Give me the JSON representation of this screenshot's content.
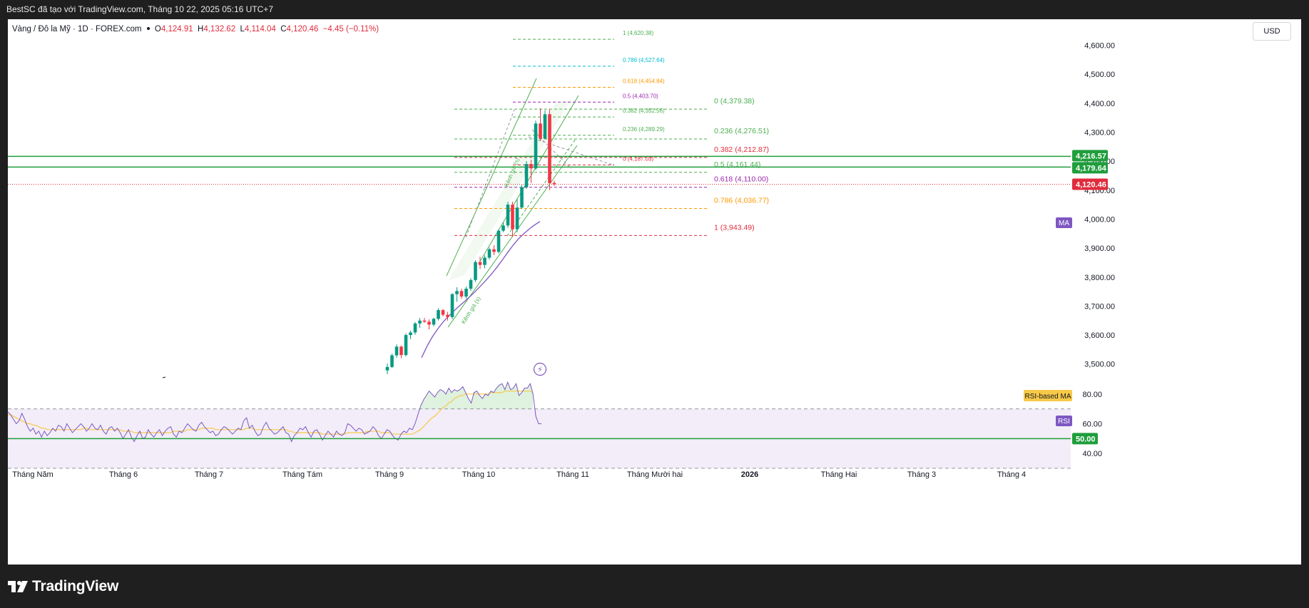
{
  "window": {
    "title": "BestSC đã tạo với TradingView.com, Tháng 10 22, 2025 05:16 UTC+7"
  },
  "legend": {
    "symbol": "Vàng / Đô la Mỹ · 1D · FOREX.com",
    "o_label": "O",
    "o_value": "4,124.91",
    "h_label": "H",
    "h_value": "4,132.62",
    "l_label": "L",
    "l_value": "4,114.04",
    "c_label": "C",
    "c_value": "4,120.46",
    "change": "−4.45 (−0.11%)"
  },
  "currency_button": "USD",
  "branding": {
    "name": "TradingView",
    "logo_icon": "tradingview-logo-icon"
  },
  "colors": {
    "up": "#089981",
    "down": "#f23645",
    "rsi": "#7e57c2",
    "rsi_ma": "#f7c948",
    "ma": "#7e57c2",
    "price_line": "#e02c3c",
    "hline": "#1f9e3c",
    "fib_green": "#4caf50",
    "fib_red": "#e02c3c",
    "fib_purple": "#9c27b0",
    "fib_orange": "#ff9800",
    "fib_cyan": "#00bcd4"
  },
  "chart_data": {
    "type": "candlestick",
    "instrument": "Vàng / Đô la Mỹ",
    "interval": "1D",
    "ylim": [
      3460,
      4670
    ],
    "y_ticks": [
      "4,600.00",
      "4,500.00",
      "4,400.00",
      "4,300.00",
      "4,200.00",
      "4,100.00",
      "4,000.00",
      "3,900.00",
      "3,800.00",
      "3,700.00",
      "3,600.00",
      "3,500.00"
    ],
    "x_ticks": [
      "Tháng Năm",
      "Tháng 6",
      "Tháng 7",
      "Tháng Tám",
      "Tháng 9",
      "Tháng 10",
      "Tháng 11",
      "Tháng Mười hai",
      "2026",
      "Tháng Hai",
      "Tháng 3",
      "Tháng 4"
    ],
    "candles_ohlc": [
      [
        3478,
        3502,
        3465,
        3490
      ],
      [
        3490,
        3536,
        3486,
        3530
      ],
      [
        3530,
        3568,
        3522,
        3560
      ],
      [
        3560,
        3564,
        3520,
        3531
      ],
      [
        3531,
        3606,
        3526,
        3600
      ],
      [
        3600,
        3615,
        3586,
        3609
      ],
      [
        3609,
        3645,
        3601,
        3640
      ],
      [
        3640,
        3659,
        3625,
        3650
      ],
      [
        3650,
        3659,
        3642,
        3646
      ],
      [
        3646,
        3654,
        3620,
        3636
      ],
      [
        3636,
        3660,
        3630,
        3656
      ],
      [
        3656,
        3692,
        3650,
        3686
      ],
      [
        3686,
        3690,
        3664,
        3670
      ],
      [
        3670,
        3680,
        3650,
        3662
      ],
      [
        3662,
        3745,
        3655,
        3741
      ],
      [
        3741,
        3765,
        3715,
        3752
      ],
      [
        3752,
        3760,
        3725,
        3733
      ],
      [
        3733,
        3767,
        3726,
        3760
      ],
      [
        3760,
        3796,
        3752,
        3790
      ],
      [
        3790,
        3858,
        3783,
        3852
      ],
      [
        3852,
        3870,
        3828,
        3842
      ],
      [
        3842,
        3875,
        3830,
        3867
      ],
      [
        3867,
        3902,
        3860,
        3896
      ],
      [
        3896,
        3910,
        3876,
        3887
      ],
      [
        3887,
        3965,
        3882,
        3960
      ],
      [
        3960,
        3988,
        3955,
        3978
      ],
      [
        3978,
        4060,
        3970,
        4050
      ],
      [
        4050,
        4060,
        3939,
        3965
      ],
      [
        3965,
        4068,
        3955,
        4040
      ],
      [
        4040,
        4118,
        4035,
        4110
      ],
      [
        4110,
        4200,
        4105,
        4190
      ],
      [
        4190,
        4205,
        4125,
        4175
      ],
      [
        4175,
        4340,
        4170,
        4330
      ],
      [
        4330,
        4382,
        4270,
        4278
      ],
      [
        4278,
        4376,
        4275,
        4362
      ],
      [
        4362,
        4381,
        4100,
        4124
      ],
      [
        4124.91,
        4132.62,
        4114.04,
        4120.46
      ]
    ],
    "moving_average": [
      3522,
      3561,
      3594,
      3621,
      3645,
      3665,
      3683,
      3700,
      3716,
      3733,
      3751,
      3770,
      3790,
      3811,
      3834,
      3859,
      3885,
      3910,
      3932,
      3950,
      3966,
      3980,
      3992
    ],
    "horizontal_levels": [
      {
        "price": 4216.57,
        "label": "4,216.57"
      },
      {
        "price": 4179.64,
        "label": "4,179.64"
      }
    ],
    "last_price": {
      "price": 4120.46,
      "label": "4,120.46"
    },
    "ma_label": "MA",
    "fib_extension": [
      {
        "text": "1 (4,620.38)",
        "price": 4620.38,
        "color": "#4caf50"
      },
      {
        "text": "0.786 (4,527.64)",
        "price": 4527.64,
        "color": "#00bcd4"
      },
      {
        "text": "0.618 (4,454.84)",
        "price": 4454.84,
        "color": "#ff9800"
      },
      {
        "text": "0.5 (4,403.70)",
        "price": 4403.7,
        "color": "#9c27b0"
      },
      {
        "text": "0.382 (4,352.56)",
        "price": 4352.56,
        "color": "#4caf50"
      },
      {
        "text": "0.236 (4,289.29)",
        "price": 4289.29,
        "color": "#4caf50"
      },
      {
        "text": "0 (4,187.03)",
        "price": 4187.03,
        "color": "#e02c3c"
      }
    ],
    "fib_retracement": [
      {
        "text": "0 (4,379.38)",
        "price": 4379.38,
        "color": "#4caf50"
      },
      {
        "text": "0.236 (4,276.51)",
        "price": 4276.51,
        "color": "#4caf50"
      },
      {
        "text": "0.382 (4,212.87)",
        "price": 4212.87,
        "color": "#e02c3c"
      },
      {
        "text": "0.5 (4,161.44)",
        "price": 4161.44,
        "color": "#4caf50"
      },
      {
        "text": "0.618 (4,110.00)",
        "price": 4110.0,
        "color": "#9c27b0"
      },
      {
        "text": "0.786 (4,036.77)",
        "price": 4036.77,
        "color": "#ff9800"
      },
      {
        "text": "1 (3,943.49)",
        "price": 3943.49,
        "color": "#e02c3c"
      }
    ],
    "channel_labels": [
      "Kênh giá (s)",
      "Kênh giá (s)"
    ],
    "rsi": {
      "label": "RSI",
      "ma_label": "RSI-based MA",
      "ylim": [
        30,
        90
      ],
      "y_ticks": [
        "80.00",
        "60.00",
        "40.00"
      ],
      "upper_band": 70,
      "lower_band": 30,
      "level_line": 50,
      "level_label": "50.00",
      "values": [
        68,
        66,
        63,
        60,
        62,
        67,
        63,
        58,
        55,
        57,
        53,
        55,
        51,
        55,
        52,
        54,
        57,
        55,
        59,
        58,
        55,
        60,
        57,
        54,
        56,
        58,
        60,
        58,
        55,
        57,
        60,
        57,
        56,
        59,
        55,
        53,
        57,
        58,
        55,
        57,
        54,
        50,
        53,
        56,
        51,
        48,
        52,
        55,
        50,
        51,
        56,
        53,
        51,
        54,
        56,
        52,
        55,
        57,
        58,
        53,
        51,
        55,
        54,
        57,
        60,
        58,
        56,
        55,
        59,
        61,
        58,
        56,
        54,
        55,
        52,
        53,
        56,
        58,
        57,
        55,
        53,
        55,
        57,
        56,
        62,
        64,
        57,
        59,
        55,
        52,
        53,
        58,
        61,
        57,
        55,
        53,
        54,
        56,
        58,
        54,
        53,
        48,
        52,
        54,
        57,
        56,
        58,
        54,
        51,
        55,
        56,
        53,
        49,
        52,
        55,
        53,
        51,
        55,
        53,
        52,
        54,
        60,
        59,
        57,
        55,
        57,
        56,
        53,
        54,
        55,
        58,
        56,
        52,
        50,
        53,
        56,
        55,
        52,
        50,
        49,
        53,
        55,
        54,
        57,
        56,
        60,
        66,
        72,
        76,
        79,
        82,
        80,
        78,
        81,
        83,
        82,
        80,
        84,
        81,
        83,
        82,
        83,
        85,
        81,
        77,
        74,
        81,
        82,
        79,
        77,
        80,
        79,
        82,
        81,
        84,
        86,
        87,
        83,
        88,
        83,
        84,
        87,
        79,
        81,
        84,
        84,
        87,
        80,
        65,
        60,
        60
      ],
      "ma_values": [
        66,
        66,
        65,
        64,
        63,
        62,
        61,
        60,
        60,
        59,
        59,
        58,
        57,
        57,
        56,
        56,
        56,
        56,
        56,
        56,
        56,
        56,
        56,
        56,
        56,
        56,
        56,
        57,
        57,
        56,
        56,
        56,
        56,
        56,
        56,
        56,
        56,
        56,
        56,
        56,
        56,
        55,
        55,
        55,
        55,
        54,
        54,
        54,
        54,
        54,
        54,
        54,
        54,
        54,
        54,
        54,
        54,
        54,
        54,
        55,
        55,
        55,
        55,
        55,
        56,
        56,
        56,
        56,
        56,
        57,
        57,
        57,
        57,
        57,
        56,
        56,
        56,
        56,
        56,
        56,
        56,
        56,
        56,
        56,
        56,
        57,
        57,
        57,
        56,
        56,
        56,
        56,
        56,
        56,
        56,
        56,
        56,
        56,
        56,
        56,
        55,
        55,
        54,
        54,
        54,
        54,
        54,
        54,
        54,
        54,
        54,
        54,
        53,
        53,
        53,
        53,
        53,
        53,
        53,
        53,
        53,
        54,
        54,
        54,
        54,
        54,
        54,
        54,
        55,
        55,
        55,
        55,
        55,
        54,
        54,
        54,
        54,
        53,
        53,
        53,
        53,
        53,
        53,
        53,
        53,
        54,
        55,
        56,
        58,
        60,
        62,
        64,
        65,
        67,
        69,
        71,
        72,
        74,
        75,
        77,
        78,
        79,
        79,
        80,
        80,
        80,
        80,
        80,
        80,
        80,
        80,
        80,
        81,
        81,
        81,
        81,
        81,
        82,
        82,
        82,
        82,
        82,
        82,
        82,
        82,
        82,
        82,
        81
      ]
    }
  }
}
